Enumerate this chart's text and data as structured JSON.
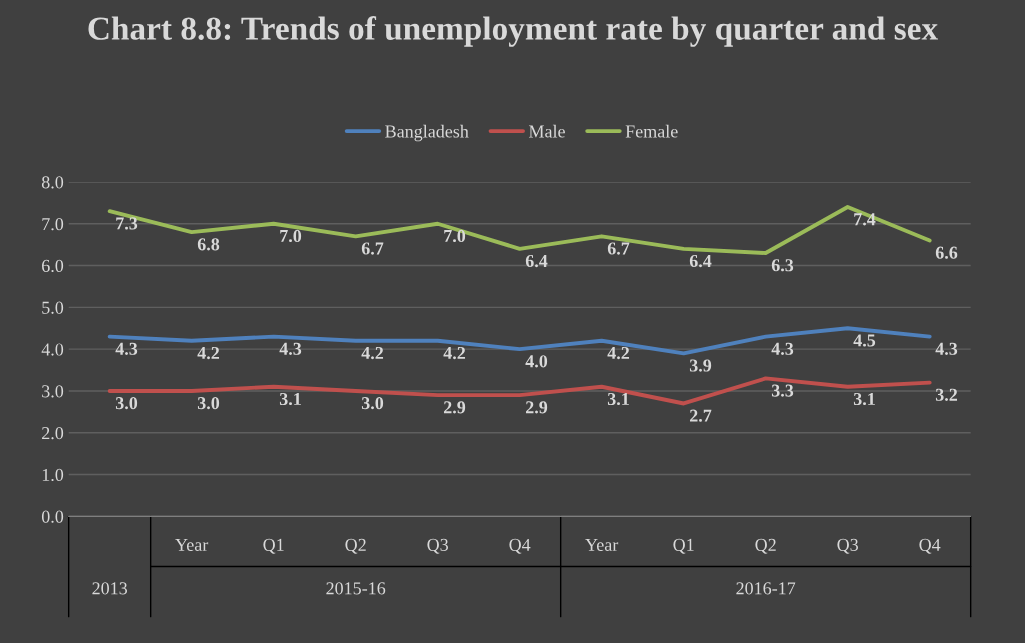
{
  "chart_data": {
    "type": "line",
    "title": "Chart 8.8: Trends of unemployment rate by quarter and sex",
    "categories": [
      null,
      "Year",
      "Q1",
      "Q2",
      "Q3",
      "Q4",
      "Year",
      "Q1",
      "Q2",
      "Q3",
      "Q4"
    ],
    "annotations": [
      "2013",
      "2015-16",
      "2016-17"
    ],
    "series": [
      {
        "name": "Bangladesh",
        "color": "#4f81bd",
        "values": [
          4.3,
          4.2,
          4.3,
          4.2,
          4.2,
          4.0,
          4.2,
          3.9,
          4.3,
          4.5,
          4.3
        ],
        "value_labels": [
          "4.3",
          "4.2",
          "4.3",
          "4.2",
          "4.2",
          "4.0",
          "4.2",
          "3.9",
          "4.3",
          "4.5",
          "4.3"
        ]
      },
      {
        "name": "Male",
        "color": "#c0504d",
        "values": [
          3.0,
          3.0,
          3.1,
          3.0,
          2.9,
          2.9,
          3.1,
          2.7,
          3.3,
          3.1,
          3.2
        ],
        "value_labels": [
          "3.0",
          "3.0",
          "3.1",
          "3.0",
          "2.9",
          "2.9",
          "3.1",
          "2.7",
          "3.3",
          "3.1",
          "3.2"
        ]
      },
      {
        "name": "Female",
        "color": "#9bbb59",
        "values": [
          7.3,
          6.8,
          7.0,
          6.7,
          7.0,
          6.4,
          6.7,
          6.4,
          6.3,
          7.4,
          6.6
        ],
        "value_labels": [
          "7.3",
          "6.8",
          "7.0",
          "6.7",
          "7.0",
          "6.4",
          "6.7",
          "6.4",
          "6.3",
          "7.4",
          "6.6"
        ]
      }
    ],
    "ylim": [
      0,
      8
    ],
    "yticks": [
      {
        "value": 0,
        "label": "0.0"
      },
      {
        "value": 1,
        "label": "1.0"
      },
      {
        "value": 2,
        "label": "2.0"
      },
      {
        "value": 3,
        "label": "3.0"
      },
      {
        "value": 4,
        "label": "4.0"
      },
      {
        "value": 5,
        "label": "5.0"
      },
      {
        "value": 6,
        "label": "6.0"
      },
      {
        "value": 7,
        "label": "7.0"
      },
      {
        "value": 8,
        "label": "8.0"
      }
    ],
    "grid": "y",
    "legend": "top",
    "marker": "none",
    "line_style": "solid"
  }
}
